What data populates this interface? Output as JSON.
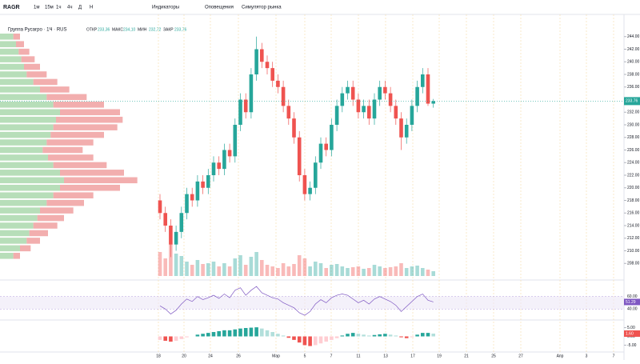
{
  "toolbar": {
    "symbol": "RAGR",
    "intervals": [
      "1м",
      "15м",
      "1ч",
      "4ч",
      "Д",
      "Н"
    ],
    "buttons": [
      "Индикаторы",
      "Оповещения",
      "Симулятор рынка"
    ]
  },
  "chart": {
    "type": "candlestick",
    "title": "Группа Русагро · 1Ч · RUS",
    "ohlc": [
      {
        "label": "ОТКР",
        "value": "233,36"
      },
      {
        "label": "МАКС",
        "value": "234,10"
      },
      {
        "label": "МИН",
        "value": "232,72"
      },
      {
        "label": "ЗАКР",
        "value": "233,76"
      }
    ],
    "candles": [
      [
        218,
        219,
        215,
        216
      ],
      [
        216,
        217,
        213,
        214
      ],
      [
        214,
        215,
        209,
        211
      ],
      [
        211,
        214,
        210,
        213
      ],
      [
        213,
        217,
        212,
        216
      ],
      [
        216,
        220,
        215,
        219
      ],
      [
        219,
        220,
        217,
        218
      ],
      [
        218,
        222,
        217,
        221
      ],
      [
        221,
        222,
        219,
        220
      ],
      [
        220,
        223,
        219,
        222
      ],
      [
        222,
        225,
        221,
        224
      ],
      [
        224,
        225,
        222,
        223
      ],
      [
        223,
        227,
        222,
        226
      ],
      [
        226,
        227,
        224,
        225
      ],
      [
        225,
        231,
        224,
        230
      ],
      [
        230,
        235,
        229,
        234
      ],
      [
        234,
        235,
        231,
        232
      ],
      [
        232,
        239,
        231,
        238
      ],
      [
        238,
        244,
        237,
        242
      ],
      [
        242,
        243,
        239,
        240
      ],
      [
        240,
        241,
        238,
        239
      ],
      [
        239,
        240,
        236,
        237
      ],
      [
        237,
        238,
        235,
        236
      ],
      [
        236,
        237,
        232,
        233
      ],
      [
        233,
        234,
        230,
        231
      ],
      [
        231,
        232,
        227,
        228
      ],
      [
        228,
        229,
        221,
        222
      ],
      [
        222,
        223,
        218,
        219
      ],
      [
        219,
        221,
        218,
        220
      ],
      [
        220,
        225,
        219,
        224
      ],
      [
        224,
        228,
        223,
        227
      ],
      [
        227,
        228,
        225,
        226
      ],
      [
        226,
        231,
        225,
        230
      ],
      [
        230,
        234,
        229,
        233
      ],
      [
        233,
        236,
        232,
        235
      ],
      [
        235,
        237,
        234,
        236
      ],
      [
        236,
        237,
        233,
        234
      ],
      [
        234,
        235,
        231,
        232
      ],
      [
        232,
        234,
        231,
        233
      ],
      [
        233,
        234,
        230,
        231
      ],
      [
        231,
        235,
        230,
        234
      ],
      [
        234,
        237,
        233,
        236
      ],
      [
        236,
        237,
        234,
        235
      ],
      [
        235,
        236,
        232,
        233
      ],
      [
        233,
        234,
        230,
        231
      ],
      [
        231,
        232,
        226,
        228
      ],
      [
        228,
        231,
        227,
        230
      ],
      [
        230,
        234,
        229,
        233
      ],
      [
        233,
        237,
        232,
        236
      ],
      [
        236,
        239,
        235,
        238
      ],
      [
        238,
        239,
        233,
        233.36
      ],
      [
        233.36,
        234.1,
        232.72,
        233.76
      ]
    ],
    "ylim": [
      206,
      246
    ],
    "yticks": [
      {
        "value": 244,
        "label": "244.00"
      },
      {
        "value": 242,
        "label": "242.00"
      },
      {
        "value": 240,
        "label": "240.00"
      },
      {
        "value": 238,
        "label": "238.00"
      },
      {
        "value": 236,
        "label": "236.00"
      },
      {
        "value": 234,
        "label": "234.00"
      },
      {
        "value": 232,
        "label": "232.00"
      },
      {
        "value": 230,
        "label": "230.00"
      },
      {
        "value": 228,
        "label": "228.00"
      },
      {
        "value": 226,
        "label": "226.00"
      },
      {
        "value": 224,
        "label": "224.00"
      },
      {
        "value": 222,
        "label": "222.00"
      },
      {
        "value": 220,
        "label": "220.00"
      },
      {
        "value": 218,
        "label": "218.00"
      },
      {
        "value": 216,
        "label": "216.00"
      },
      {
        "value": 214,
        "label": "214.00"
      },
      {
        "value": 212,
        "label": "212.00"
      },
      {
        "value": 210,
        "label": "210.00"
      },
      {
        "value": 208,
        "label": "208.00"
      }
    ],
    "last_price": {
      "value": 233.76,
      "label": "233.76"
    },
    "up_color": "#26a69a",
    "down_color": "#ef5350",
    "volume": {
      "values": [
        30,
        22,
        40,
        28,
        25,
        18,
        14,
        20,
        15,
        16,
        18,
        12,
        16,
        12,
        22,
        26,
        14,
        24,
        30,
        20,
        14,
        12,
        10,
        16,
        12,
        15,
        26,
        22,
        12,
        18,
        16,
        10,
        14,
        15,
        12,
        10,
        11,
        12,
        9,
        10,
        14,
        12,
        10,
        11,
        12,
        16,
        10,
        12,
        13,
        10,
        8,
        6
      ],
      "ylim": [
        0,
        100
      ]
    },
    "profile": {
      "prices": [
        244,
        242.8,
        241.6,
        240.4,
        239.2,
        238,
        236.8,
        235.6,
        234.4,
        233.2,
        232,
        230.8,
        229.6,
        228.4,
        227.2,
        226,
        224.8,
        223.6,
        222.4,
        221.2,
        220,
        218.8,
        217.6,
        216.4,
        215.2,
        214,
        212.8,
        211.6,
        210.4,
        209.2
      ],
      "buy": [
        10,
        12,
        14,
        16,
        18,
        20,
        25,
        30,
        35,
        40,
        45,
        42,
        40,
        38,
        35,
        32,
        36,
        40,
        45,
        48,
        45,
        40,
        35,
        30,
        28,
        25,
        22,
        20,
        15,
        10
      ],
      "sell": [
        5,
        6,
        8,
        10,
        12,
        15,
        18,
        22,
        30,
        38,
        45,
        50,
        48,
        40,
        35,
        30,
        34,
        40,
        48,
        55,
        45,
        30,
        28,
        25,
        20,
        18,
        14,
        10,
        8,
        5
      ],
      "xlim": [
        0,
        120
      ]
    },
    "dates": [
      "18",
      "20",
      "24",
      "26",
      "Мар",
      "5",
      "7",
      "11",
      "13",
      "17",
      "19",
      "21",
      "25",
      "27",
      "Апр",
      "3",
      "7"
    ],
    "rsi": {
      "values": [
        45,
        40,
        32,
        38,
        48,
        56,
        52,
        60,
        55,
        58,
        62,
        57,
        64,
        58,
        70,
        74,
        62,
        70,
        76,
        66,
        62,
        58,
        56,
        50,
        46,
        42,
        34,
        30,
        36,
        48,
        55,
        50,
        58,
        62,
        64,
        62,
        56,
        50,
        54,
        48,
        56,
        60,
        56,
        52,
        46,
        36,
        44,
        52,
        60,
        64,
        54,
        51.29
      ],
      "ylim": [
        25,
        80
      ],
      "yticks": [
        {
          "value": 60,
          "label": "60.00"
        },
        {
          "value": 40,
          "label": "40.00"
        }
      ],
      "last": "51.29",
      "color": "#7e57c2"
    },
    "macd": {
      "values": [
        -2,
        -2.5,
        -3,
        -2.5,
        -1.5,
        -0.5,
        0,
        1,
        1.5,
        2,
        2.5,
        3,
        3.5,
        3.5,
        4,
        4.5,
        4.8,
        5,
        5.2,
        4.5,
        3.5,
        2.5,
        1.5,
        0.5,
        -0.8,
        -2,
        -3.5,
        -5,
        -5.5,
        -5,
        -4,
        -3,
        -2,
        -1,
        0.5,
        1.5,
        2,
        1.5,
        1,
        0.5,
        0.8,
        1.2,
        1.5,
        1,
        0.5,
        -0.5,
        -1,
        -0.5,
        1,
        2,
        2,
        1.6
      ],
      "ylim": [
        -8,
        8
      ],
      "yticks": [
        {
          "value": 5,
          "label": "5.00"
        },
        {
          "value": 0,
          "label": "0.00"
        },
        {
          "value": -5,
          "label": "-5.00"
        }
      ],
      "last": "1.60"
    }
  }
}
